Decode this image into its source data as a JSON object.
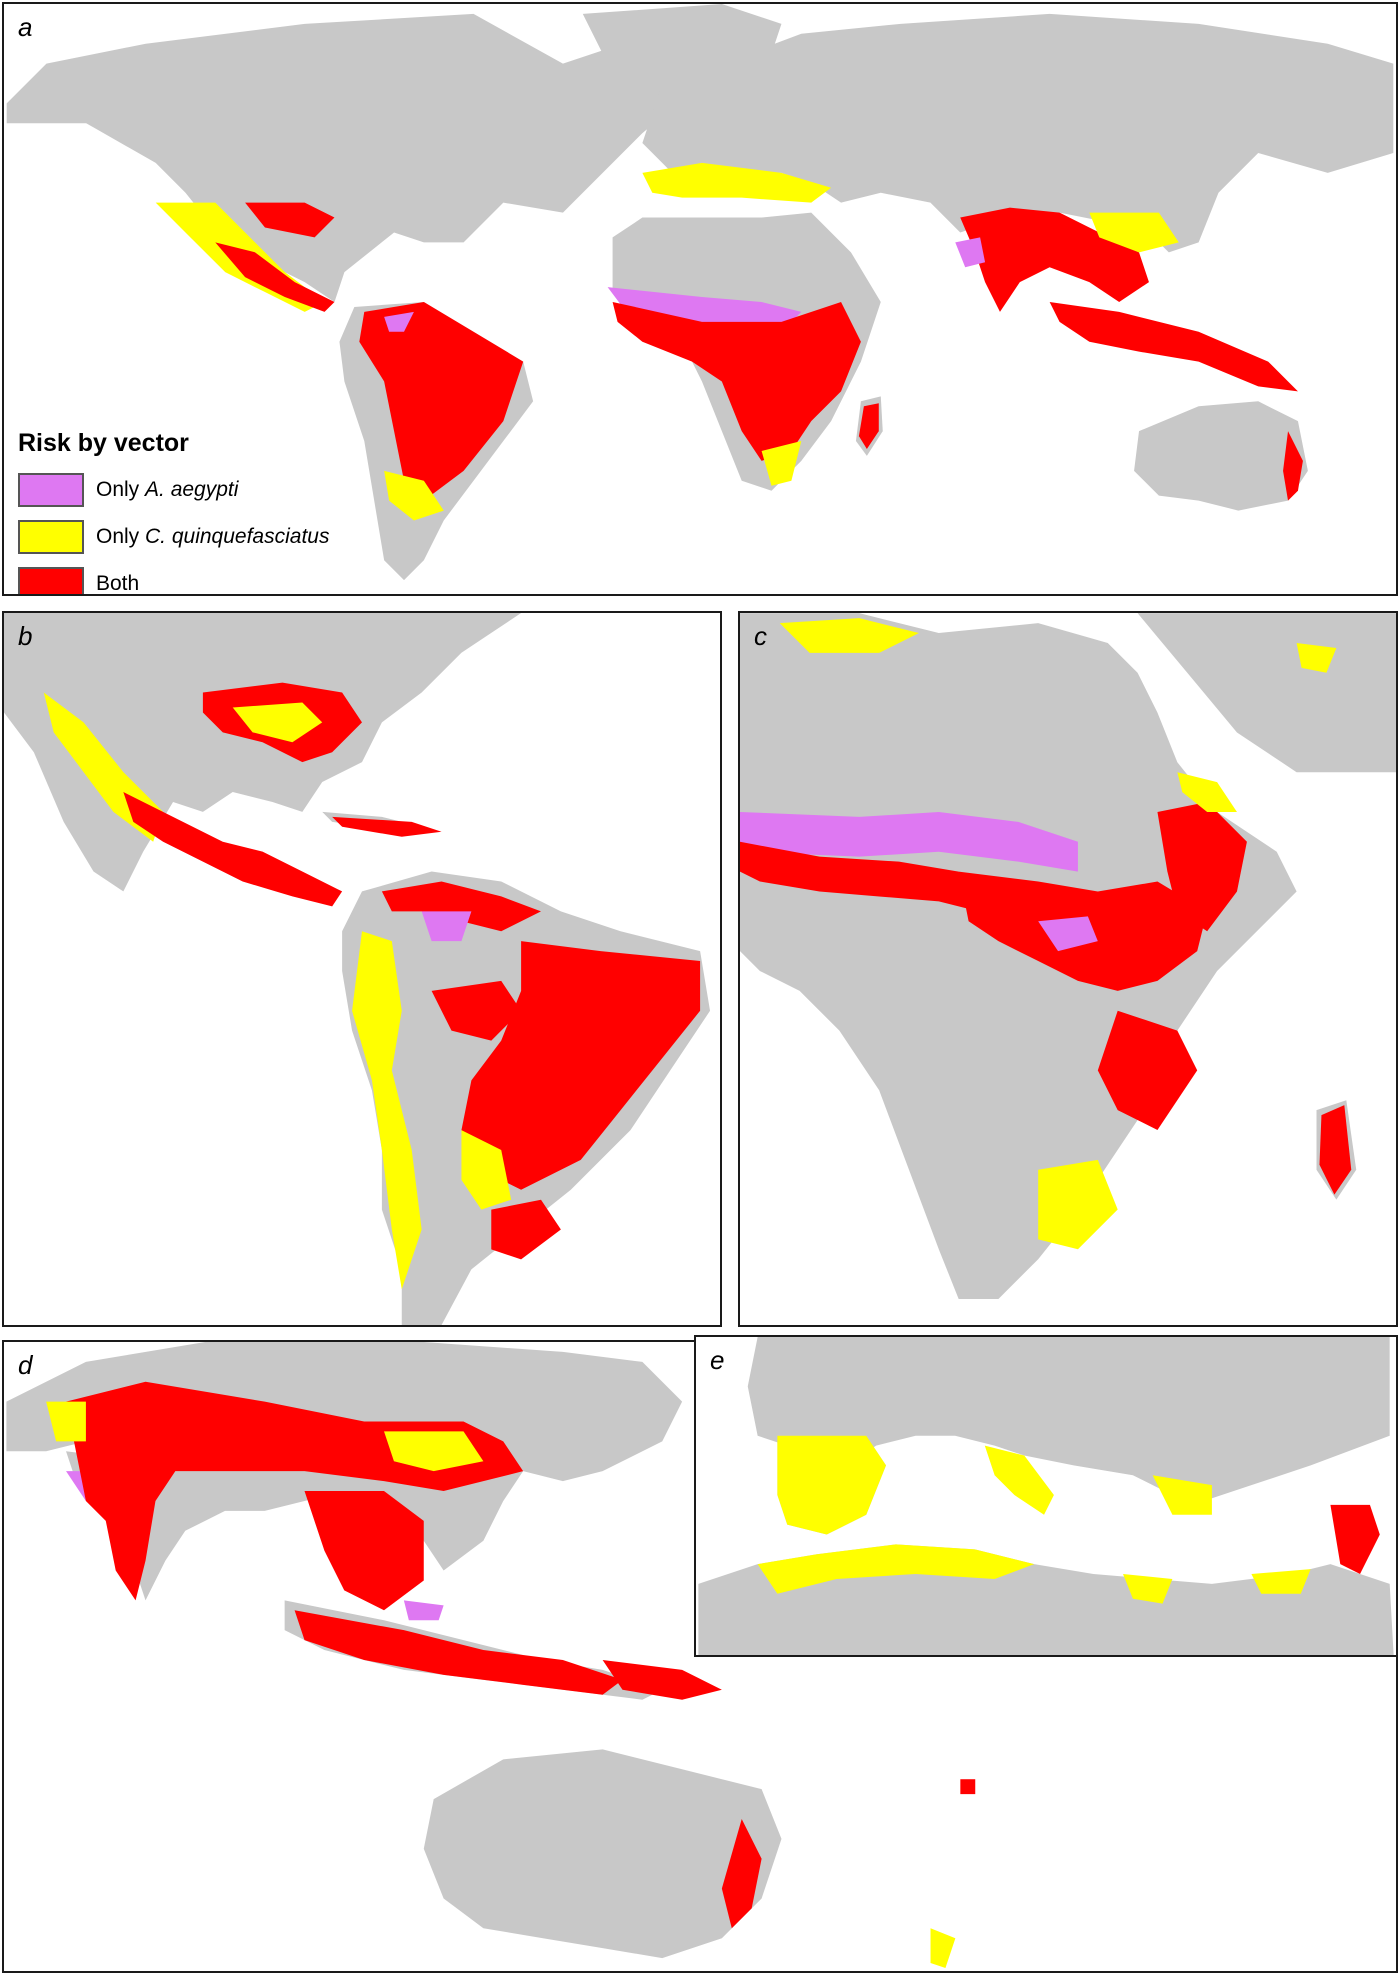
{
  "panels": {
    "a": {
      "letter": "a"
    },
    "b": {
      "letter": "b"
    },
    "c": {
      "letter": "c"
    },
    "d": {
      "letter": "d"
    },
    "e": {
      "letter": "e"
    }
  },
  "legend": {
    "title": "Risk by vector",
    "items": [
      {
        "prefix": "Only ",
        "species": "A. aegypti",
        "color": "#de78f2"
      },
      {
        "prefix": "Only ",
        "species": "C. quinquefasciatus",
        "color": "#ffff00"
      },
      {
        "prefix": "",
        "species": "",
        "label": "Both",
        "color": "#ff0000"
      }
    ]
  },
  "colors": {
    "land": "#c8c8c8",
    "water": "#ffffff",
    "only_aegypti": "#de78f2",
    "only_quinquefasciatus": "#ffff00",
    "both": "#ff0000"
  }
}
